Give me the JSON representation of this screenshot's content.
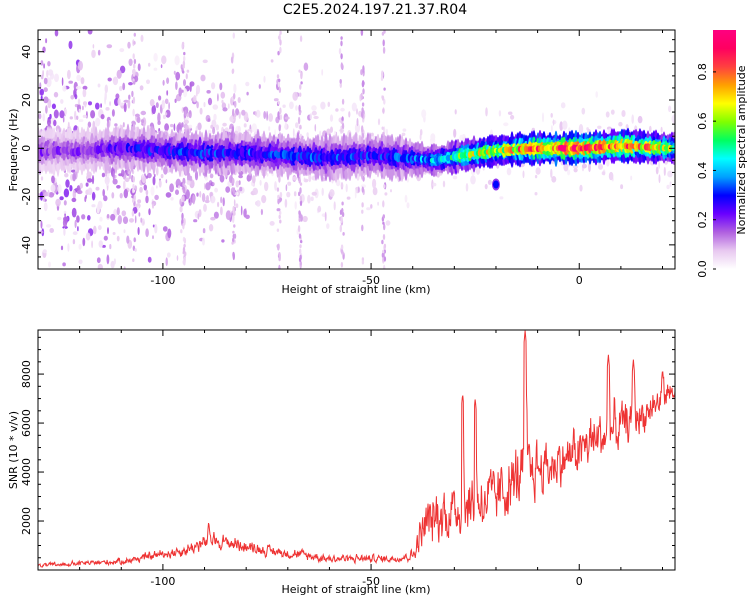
{
  "title": "C2E5.2024.197.21.37.R04",
  "chart_data": [
    {
      "type": "heatmap",
      "xlabel": "Height of straight line (km)",
      "ylabel": "Frequency (Hz)",
      "xlim": [
        -130,
        23
      ],
      "ylim": [
        -50,
        49
      ],
      "x_ticks": [
        -100,
        -50,
        0
      ],
      "x_tick_labels": [
        "-100",
        "-50",
        "0"
      ],
      "y_ticks": [
        -40,
        -20,
        0,
        20,
        40
      ],
      "y_tick_labels": [
        "-40",
        "-20",
        "0",
        "20",
        "40"
      ],
      "colorbar": {
        "label": "Normalized spectral amplitude",
        "range": [
          0,
          0.97
        ],
        "ticks": [
          0.0,
          0.2,
          0.4,
          0.6,
          0.8
        ],
        "tick_labels": [
          "0.0",
          "0.2",
          "0.4",
          "0.6",
          "0.8"
        ],
        "colors": [
          "#ffffff",
          "#e8c8f0",
          "#b060e0",
          "#6a00ff",
          "#0000ff",
          "#00a0ff",
          "#00ffff",
          "#00ff60",
          "#80ff00",
          "#ffff00",
          "#ffa000",
          "#ff4040",
          "#ff0060",
          "#ff0080"
        ]
      },
      "ridge": [
        {
          "x": -120,
          "y": -1,
          "amp": 0.18
        },
        {
          "x": -110,
          "y": 0,
          "amp": 0.24
        },
        {
          "x": -100,
          "y": -1,
          "amp": 0.28
        },
        {
          "x": -90,
          "y": -2,
          "amp": 0.3
        },
        {
          "x": -80,
          "y": -2,
          "amp": 0.3
        },
        {
          "x": -70,
          "y": -3,
          "amp": 0.3
        },
        {
          "x": -60,
          "y": -4,
          "amp": 0.3
        },
        {
          "x": -50,
          "y": -3,
          "amp": 0.28
        },
        {
          "x": -42,
          "y": -4,
          "amp": 0.3
        },
        {
          "x": -35,
          "y": -5,
          "amp": 0.4
        },
        {
          "x": -28,
          "y": -3,
          "amp": 0.55
        },
        {
          "x": -20,
          "y": -1,
          "amp": 0.65
        },
        {
          "x": -10,
          "y": 0,
          "amp": 0.8
        },
        {
          "x": 0,
          "y": 0,
          "amp": 0.85
        },
        {
          "x": 10,
          "y": 1,
          "amp": 0.8
        },
        {
          "x": 23,
          "y": 0,
          "amp": 0.55
        }
      ],
      "features": [
        {
          "x": -20,
          "y": -15,
          "amp": 0.3
        }
      ]
    },
    {
      "type": "line",
      "xlabel": "Height of straight line (km)",
      "ylabel": "SNR (10 * v/v)",
      "xlim": [
        -130,
        23
      ],
      "ylim": [
        0,
        9800
      ],
      "x_ticks": [
        -100,
        -50,
        0
      ],
      "x_tick_labels": [
        "-100",
        "-50",
        "0"
      ],
      "y_ticks": [
        2000,
        4000,
        6000,
        8000
      ],
      "y_tick_labels": [
        "2000",
        "4000",
        "6000",
        "8000"
      ],
      "color": "#ee3333",
      "envelope": [
        {
          "x": -130,
          "base": 150,
          "amp": 200
        },
        {
          "x": -110,
          "base": 300,
          "amp": 350
        },
        {
          "x": -95,
          "base": 700,
          "amp": 700
        },
        {
          "x": -88,
          "base": 1100,
          "amp": 900
        },
        {
          "x": -75,
          "base": 700,
          "amp": 600
        },
        {
          "x": -60,
          "base": 400,
          "amp": 500
        },
        {
          "x": -45,
          "base": 400,
          "amp": 400
        },
        {
          "x": -40,
          "base": 500,
          "amp": 600
        },
        {
          "x": -37,
          "base": 1500,
          "amp": 2800
        },
        {
          "x": -30,
          "base": 2000,
          "amp": 3200
        },
        {
          "x": -20,
          "base": 2500,
          "amp": 3200
        },
        {
          "x": -13,
          "base": 3500,
          "amp": 3600
        },
        {
          "x": -5,
          "base": 4000,
          "amp": 2500
        },
        {
          "x": 5,
          "base": 5000,
          "amp": 3000
        },
        {
          "x": 15,
          "base": 6000,
          "amp": 2000
        },
        {
          "x": 23,
          "base": 7200,
          "amp": 1200
        }
      ],
      "peaks": [
        {
          "x": -89,
          "y": 2000
        },
        {
          "x": -28,
          "y": 7200
        },
        {
          "x": -25,
          "y": 7000
        },
        {
          "x": -13,
          "y": 9800
        },
        {
          "x": 7,
          "y": 8800
        },
        {
          "x": 13,
          "y": 8600
        },
        {
          "x": 20,
          "y": 8200
        }
      ]
    }
  ]
}
